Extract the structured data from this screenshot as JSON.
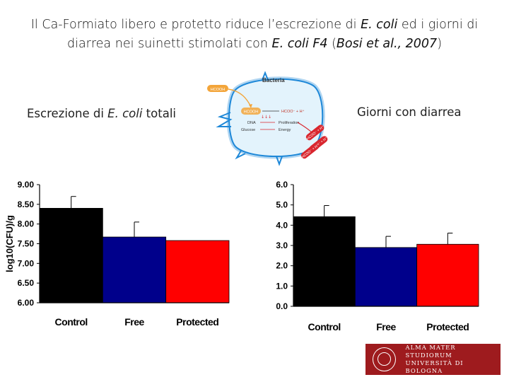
{
  "title": {
    "part1": "Il Ca-Formiato libero e protetto riduce l’escrezione di ",
    "italic1": "E. coli",
    "part2": " ed i giorni di diarrea nei suinetti stimolati con ",
    "italic2": "E. coli F4",
    "part3": " (",
    "italic3": "Bosi et al., 2007",
    "part4": ")"
  },
  "left_label": {
    "text": "Escrezione di ",
    "italic": "E. coli",
    "suffix": " totali"
  },
  "right_label": {
    "text": "Giorni con diarrea"
  },
  "diagram": {
    "header": "Bacteria",
    "formula_outer": "HCOOH",
    "formula_inner": "HCOOH",
    "dissociated": "HCOO⁻ + H⁺",
    "rows": [
      {
        "left": "DNA",
        "right": "Proliferation"
      },
      {
        "left": "Glucose",
        "right": "Energy"
      }
    ],
    "exiting_ions": [
      "HCOO⁻ + H⁺",
      "HCOO⁻ + H⁺",
      "HCOO⁻ + H⁺"
    ]
  },
  "colors": {
    "control": "#000000",
    "free": "#00008b",
    "protected": "#ff0000",
    "logo_bg": "#9e1b1e",
    "bacterium": "#1e88d8",
    "bacterium_fill": "#e3f3fc",
    "acid_badge": "#f3a53a",
    "ion_badge": "#d9262e"
  },
  "chart_data": [
    {
      "type": "bar",
      "categories": [
        "Control",
        "Free",
        "Protected"
      ],
      "values": [
        8.4,
        7.67,
        7.58
      ],
      "errors": [
        0.3,
        0.38,
        0.0
      ],
      "ylabel": "log10(CFU)/g",
      "ylim": [
        6.0,
        9.0
      ],
      "yticks": [
        "6.00",
        "6.50",
        "7.00",
        "7.50",
        "8.00",
        "8.50",
        "9.00"
      ],
      "grid": false
    },
    {
      "type": "bar",
      "categories": [
        "Control",
        "Free",
        "Protected"
      ],
      "values": [
        4.42,
        2.9,
        3.06
      ],
      "errors": [
        0.55,
        0.55,
        0.55
      ],
      "ylabel": "",
      "ylim": [
        0.0,
        6.0
      ],
      "yticks": [
        "0.0",
        "1.0",
        "2.0",
        "3.0",
        "4.0",
        "5.0",
        "6.0"
      ],
      "grid": false
    }
  ],
  "logo": {
    "line1": "ALMA MATER STUDIORUM",
    "line2": "UNIVERSITÀ DI BOLOGNA"
  }
}
